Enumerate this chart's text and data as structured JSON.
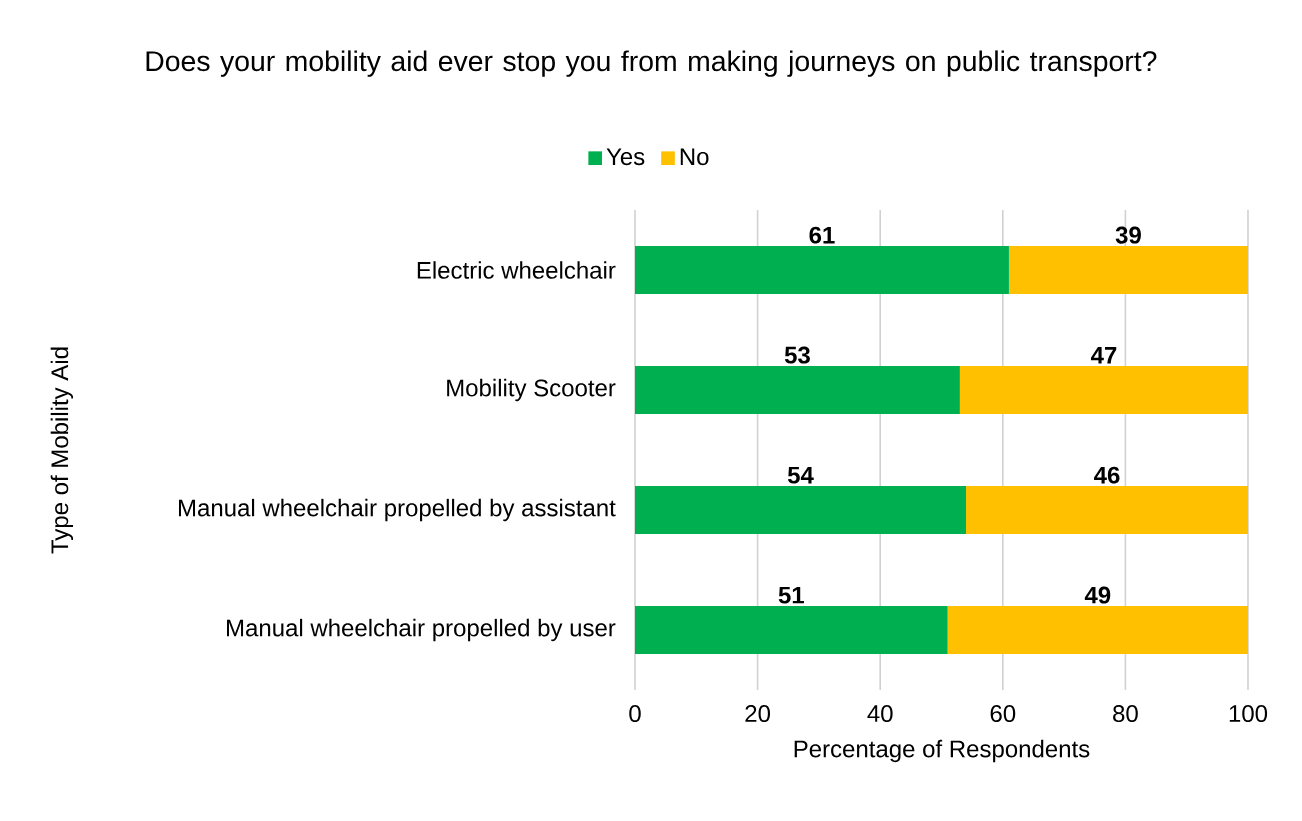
{
  "chart_data": {
    "type": "bar",
    "orientation": "horizontal",
    "stacked": true,
    "title": "Does your mobility aid ever stop you from making journeys on public transport?",
    "xlabel": "Percentage of Respondents",
    "ylabel": "Type of Mobility Aid",
    "categories": [
      "Electric wheelchair",
      "Mobility Scooter",
      "Manual wheelchair propelled by assistant",
      "Manual wheelchair propelled by user"
    ],
    "series": [
      {
        "name": "Yes",
        "color": "#00b050",
        "values": [
          61,
          53,
          54,
          51
        ]
      },
      {
        "name": "No",
        "color": "#ffc000",
        "values": [
          39,
          47,
          46,
          49
        ]
      }
    ],
    "xlim": [
      0,
      100
    ],
    "xticks": [
      0,
      20,
      40,
      60,
      80,
      100
    ],
    "grid": "x",
    "legend": "top",
    "data_labels": true
  }
}
